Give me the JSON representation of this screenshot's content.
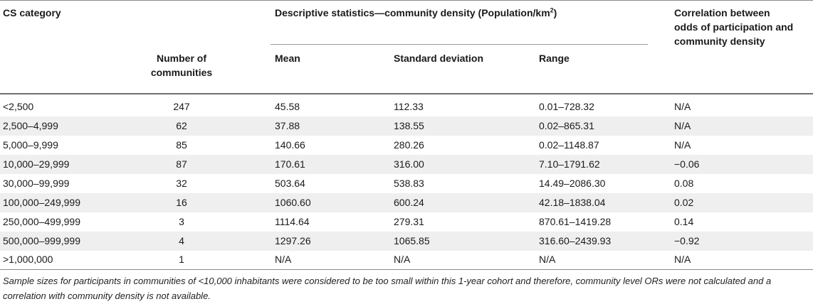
{
  "headers": {
    "cs_category": "CS category",
    "descriptive": "Descriptive statistics—community density (Population/km",
    "descriptive_sup": "2",
    "descriptive_close": ")",
    "correlation": [
      "Correlation between",
      "odds of participation and",
      "community density"
    ],
    "num_communities": [
      "Number of",
      "communities"
    ],
    "mean": "Mean",
    "sd": "Standard deviation",
    "range": "Range"
  },
  "rows": [
    {
      "category": "<2,500",
      "n": "247",
      "mean": "45.58",
      "sd": "112.33",
      "range": "0.01–728.32",
      "corr": "N/A"
    },
    {
      "category": "2,500–4,999",
      "n": "62",
      "mean": "37.88",
      "sd": "138.55",
      "range": "0.02–865.31",
      "corr": "N/A"
    },
    {
      "category": "5,000–9,999",
      "n": "85",
      "mean": "140.66",
      "sd": "280.26",
      "range": "0.02–1148.87",
      "corr": "N/A"
    },
    {
      "category": "10,000–29,999",
      "n": "87",
      "mean": "170.61",
      "sd": "316.00",
      "range": "7.10–1791.62",
      "corr": "−0.06"
    },
    {
      "category": "30,000–99,999",
      "n": "32",
      "mean": "503.64",
      "sd": "538.83",
      "range": "14.49–2086.30",
      "corr": "0.08"
    },
    {
      "category": "100,000–249,999",
      "n": "16",
      "mean": "1060.60",
      "sd": "600.24",
      "range": "42.18–1838.04",
      "corr": "0.02"
    },
    {
      "category": "250,000–499,999",
      "n": "3",
      "mean": "1114.64",
      "sd": "279.31",
      "range": "870.61–1419.28",
      "corr": "0.14"
    },
    {
      "category": "500,000–999,999",
      "n": "4",
      "mean": "1297.26",
      "sd": "1065.85",
      "range": "316.60–2439.93",
      "corr": "−0.92"
    },
    {
      "category": ">1,000,000",
      "n": "1",
      "mean": "N/A",
      "sd": "N/A",
      "range": "N/A",
      "corr": "N/A"
    }
  ],
  "footnote": "Sample sizes for participants in communities of <10,000 inhabitants were considered to be too small within this 1-year cohort and therefore, community level ORs were not calculated and a correlation with community density is not available."
}
